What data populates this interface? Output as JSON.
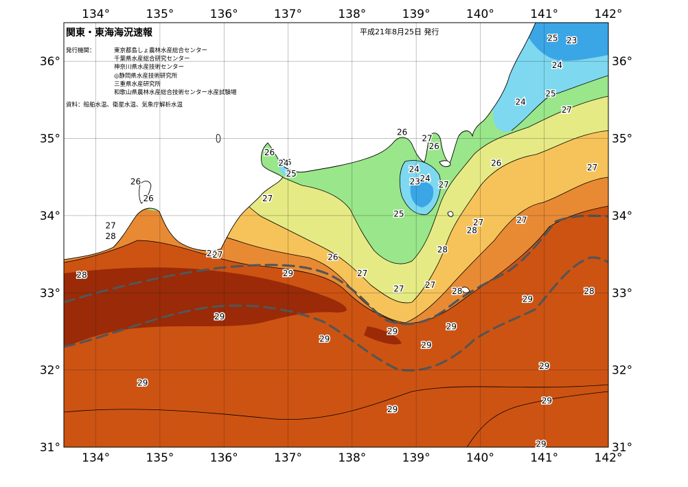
{
  "title": "関東・東海海況速報",
  "date": "平成21年8月25日 発行",
  "issuer_label": "発行機関：",
  "issuers": [
    "東京都島しょ農林水産総合センター",
    "千葉県水産総合研究センター",
    "神奈川県水産技術センター",
    "◎静岡県水産技術研究所",
    "三重県水産研究所",
    "和歌山県農林水産総合技術センター水産試験場"
  ],
  "sources": "資料：船舶水温、衛星水温、気象庁解析水温",
  "lon_labels": [
    "134°",
    "135°",
    "136°",
    "137°",
    "138°",
    "139°",
    "140°",
    "141°",
    "142°"
  ],
  "lat_labels": [
    "36°",
    "35°",
    "34°",
    "33°",
    "32°",
    "31°"
  ],
  "extent": {
    "lon": [
      133.5,
      142
    ],
    "lat": [
      31,
      36.5
    ]
  },
  "colors": {
    "t23": "#3aa6e6",
    "t24": "#7ed8f0",
    "t25": "#9ae68a",
    "t26": "#e6ea84",
    "t27": "#f6c35a",
    "t28": "#e88a34",
    "t29": "#cd5312",
    "t30": "#9a2a08",
    "land": "#ffffff",
    "kuroshio": "#555555"
  },
  "contour_labels": [
    {
      "t": "25",
      "lon": 141.13,
      "lat": 36.3
    },
    {
      "t": "23",
      "lon": 141.43,
      "lat": 36.27
    },
    {
      "t": "24",
      "lon": 141.2,
      "lat": 35.95
    },
    {
      "t": "25",
      "lon": 141.1,
      "lat": 35.58
    },
    {
      "t": "24",
      "lon": 140.63,
      "lat": 35.47
    },
    {
      "t": "27",
      "lon": 141.35,
      "lat": 35.37
    },
    {
      "t": "26",
      "lon": 138.78,
      "lat": 35.08
    },
    {
      "t": "27",
      "lon": 139.17,
      "lat": 35.0
    },
    {
      "t": "26",
      "lon": 139.28,
      "lat": 34.9
    },
    {
      "t": "26",
      "lon": 140.25,
      "lat": 34.68
    },
    {
      "t": "27",
      "lon": 141.75,
      "lat": 34.62
    },
    {
      "t": "26",
      "lon": 136.71,
      "lat": 34.82
    },
    {
      "t": "26",
      "lon": 136.97,
      "lat": 34.69
    },
    {
      "t": "24",
      "lon": 136.93,
      "lat": 34.68
    },
    {
      "t": "25",
      "lon": 137.05,
      "lat": 34.54
    },
    {
      "t": "24",
      "lon": 138.97,
      "lat": 34.6
    },
    {
      "t": "23",
      "lon": 138.98,
      "lat": 34.44
    },
    {
      "t": "24",
      "lon": 139.14,
      "lat": 34.48
    },
    {
      "t": "27",
      "lon": 139.43,
      "lat": 34.4
    },
    {
      "t": "26",
      "lon": 134.62,
      "lat": 34.44
    },
    {
      "t": "26",
      "lon": 134.82,
      "lat": 34.22
    },
    {
      "t": "27",
      "lon": 136.68,
      "lat": 34.22
    },
    {
      "t": "25",
      "lon": 138.73,
      "lat": 34.02
    },
    {
      "t": "27",
      "lon": 139.97,
      "lat": 33.91
    },
    {
      "t": "27",
      "lon": 140.65,
      "lat": 33.94
    },
    {
      "t": "28",
      "lon": 139.87,
      "lat": 33.81
    },
    {
      "t": "27",
      "lon": 134.23,
      "lat": 33.87
    },
    {
      "t": "28",
      "lon": 134.23,
      "lat": 33.73
    },
    {
      "t": "28",
      "lon": 139.41,
      "lat": 33.56
    },
    {
      "t": "26",
      "lon": 135.81,
      "lat": 33.51
    },
    {
      "t": "27",
      "lon": 135.9,
      "lat": 33.49
    },
    {
      "t": "26",
      "lon": 137.7,
      "lat": 33.46
    },
    {
      "t": "28",
      "lon": 133.78,
      "lat": 33.23
    },
    {
      "t": "29",
      "lon": 137.0,
      "lat": 33.25
    },
    {
      "t": "27",
      "lon": 138.16,
      "lat": 33.25
    },
    {
      "t": "27",
      "lon": 139.22,
      "lat": 33.1
    },
    {
      "t": "27",
      "lon": 138.73,
      "lat": 33.05
    },
    {
      "t": "28",
      "lon": 139.64,
      "lat": 33.02
    },
    {
      "t": "29",
      "lon": 140.74,
      "lat": 32.92
    },
    {
      "t": "28",
      "lon": 141.7,
      "lat": 33.02
    },
    {
      "t": "29",
      "lon": 135.93,
      "lat": 32.69
    },
    {
      "t": "29",
      "lon": 139.55,
      "lat": 32.56
    },
    {
      "t": "29",
      "lon": 138.63,
      "lat": 32.5
    },
    {
      "t": "29",
      "lon": 137.57,
      "lat": 32.4
    },
    {
      "t": "29",
      "lon": 139.16,
      "lat": 32.32
    },
    {
      "t": "29",
      "lon": 141.0,
      "lat": 32.05
    },
    {
      "t": "29",
      "lon": 134.73,
      "lat": 31.83
    },
    {
      "t": "29",
      "lon": 141.04,
      "lat": 31.6
    },
    {
      "t": "29",
      "lon": 138.63,
      "lat": 31.49
    },
    {
      "t": "29",
      "lon": 140.95,
      "lat": 31.04
    }
  ]
}
